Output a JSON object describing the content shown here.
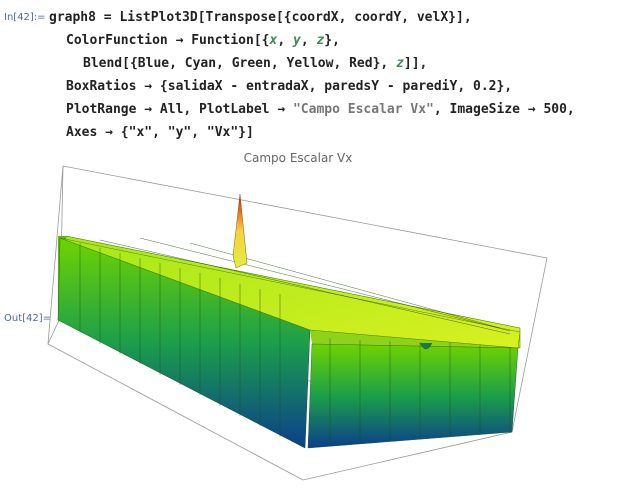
{
  "input": {
    "label": "In[42]:=",
    "lines": [
      [
        "graph8 = ListPlot3D[Transpose[{coordX, coordY, velX}],"
      ],
      [
        "ColorFunction → Function[{",
        "x",
        ", ",
        "y",
        ", ",
        "z",
        "},"
      ],
      [
        "Blend[{Blue, Cyan, Green, Yellow, Red}, ",
        "z",
        "]],"
      ],
      [
        "BoxRatios → {salidaX - entradaX, paredsY - parediY, 0.2},"
      ],
      [
        "PlotRange → All, PlotLabel → ",
        "\"Campo Escalar Vx\"",
        ", ImageSize → 500,"
      ],
      [
        "Axes → {\"x\", \"y\", \"Vx\"}]"
      ]
    ]
  },
  "output": {
    "label": "Out[42]=",
    "plot_label": "Campo Escalar Vx"
  }
}
